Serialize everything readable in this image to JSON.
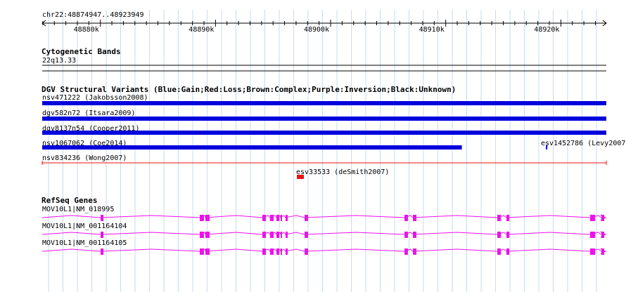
{
  "ruler": {
    "location": "chr22:48874947..48923949",
    "ticks": [
      {
        "label": "48880k",
        "pos": 48880000
      },
      {
        "label": "48890k",
        "pos": 48890000
      },
      {
        "label": "48900k",
        "pos": 48900000
      },
      {
        "label": "48910k",
        "pos": 48910000
      },
      {
        "label": "48920k",
        "pos": 48920000
      }
    ]
  },
  "region": {
    "start": 48874947,
    "end": 48923949
  },
  "cytoband": {
    "title": "Cytogenetic Bands",
    "band_label": "22q13.33"
  },
  "dgv": {
    "title": "DGV Structural Variants (Blue:Gain;Red:Loss;Brown:Complex;Purple:Inversion;Black:Unknown)",
    "colors": {
      "gain": "#0000dd",
      "loss": "#ee1111",
      "complex": "#8b4513",
      "inversion": "#800080",
      "unknown": "#000000"
    },
    "variants": [
      {
        "label": "nsv471222 (Jakobsson2008)",
        "type": "gain",
        "start": 48874947,
        "end": 48923949
      },
      {
        "label": "dgv582n72 (Itsara2009)",
        "type": "gain",
        "start": 48874947,
        "end": 48923949
      },
      {
        "label": "dgv8137n54 (Cooper2011)",
        "type": "gain",
        "start": 48874947,
        "end": 48923949
      },
      {
        "label": "nsv1067062 (Coe2014)",
        "type": "gain",
        "start": 48874947,
        "end": 48911400
      },
      {
        "label": "esv1452786 (Levy2007)",
        "type": "gain",
        "start": 48918700,
        "end": 48918800
      },
      {
        "label": "nsv834236 (Wong2007)",
        "type": "loss",
        "start": 48874947,
        "end": 48923949,
        "thin": true
      },
      {
        "label": "esv33533 (deSmith2007)",
        "type": "loss",
        "start": 48897200,
        "end": 48897800
      }
    ]
  },
  "refseq": {
    "title": "RefSeq Genes",
    "color": "#ee11ee",
    "genes": [
      {
        "label": "MOV10L1|NM_018995"
      },
      {
        "label": "MOV10L1|NM_001164104"
      },
      {
        "label": "MOV10L1|NM_001164105"
      }
    ]
  }
}
